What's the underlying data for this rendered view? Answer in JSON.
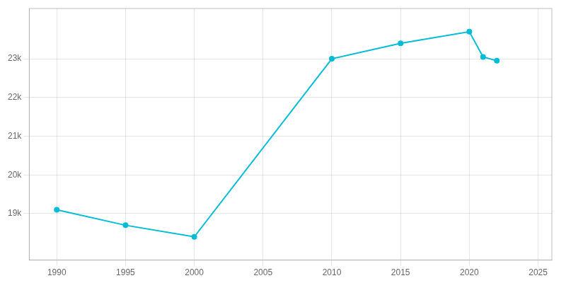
{
  "chart_data": {
    "type": "line",
    "x": [
      1990,
      1995,
      2000,
      2010,
      2015,
      2020,
      2021,
      2022
    ],
    "values": [
      19100,
      18700,
      18400,
      23000,
      23400,
      23700,
      23050,
      22950
    ],
    "color": "#00BCD4",
    "marker": "circle",
    "xlim": [
      1988,
      2026
    ],
    "ylim": [
      17800,
      24300
    ],
    "xticks": [
      1990,
      1995,
      2000,
      2005,
      2010,
      2015,
      2020,
      2025
    ],
    "yticks": [
      {
        "value": 19000,
        "label": "19k"
      },
      {
        "value": 20000,
        "label": "20k"
      },
      {
        "value": 21000,
        "label": "21k"
      },
      {
        "value": 22000,
        "label": "22k"
      },
      {
        "value": 23000,
        "label": "23k"
      }
    ],
    "grid": true
  }
}
